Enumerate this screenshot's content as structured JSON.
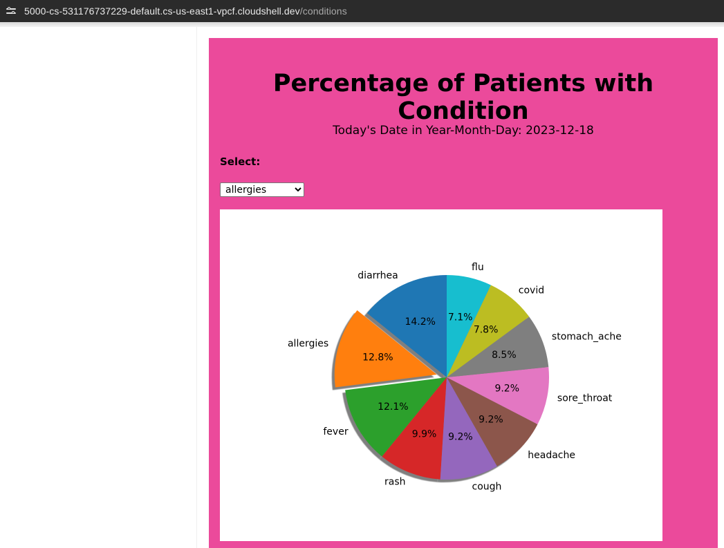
{
  "browser": {
    "url_host": "5000-cs-531176737229-default.cs-us-east1-vpcf.cloudshell.dev",
    "url_path": "/conditions",
    "site_info_icon": "tune-icon"
  },
  "page": {
    "title": "Percentage of Patients with Condition",
    "date_line": "Today's Date in Year-Month-Day: 2023-12-18",
    "select_label": "Select:",
    "select_value": "allergies",
    "background_color": "#eb4a9b"
  },
  "chart_data": {
    "type": "pie",
    "title": "",
    "explode": "allergies",
    "shadow": true,
    "slices": [
      {
        "label": "diarrhea",
        "pct_label": "14.2%",
        "value": 14.2,
        "color": "#1f77b4"
      },
      {
        "label": "allergies",
        "pct_label": "12.8%",
        "value": 12.8,
        "color": "#ff7f0e"
      },
      {
        "label": "fever",
        "pct_label": "12.1%",
        "value": 12.1,
        "color": "#2ca02c"
      },
      {
        "label": "rash",
        "pct_label": "9.9%",
        "value": 9.9,
        "color": "#d62728"
      },
      {
        "label": "cough",
        "pct_label": "9.2%",
        "value": 9.2,
        "color": "#9467bd"
      },
      {
        "label": "headache",
        "pct_label": "9.2%",
        "value": 9.2,
        "color": "#8c564b"
      },
      {
        "label": "sore_throat",
        "pct_label": "9.2%",
        "value": 9.2,
        "color": "#e377c2"
      },
      {
        "label": "stomach_ache",
        "pct_label": "8.5%",
        "value": 8.5,
        "color": "#7f7f7f"
      },
      {
        "label": "covid",
        "pct_label": "7.8%",
        "value": 7.8,
        "color": "#bcbd22"
      },
      {
        "label": "flu",
        "pct_label": "7.1%",
        "value": 7.1,
        "color": "#17becf"
      }
    ]
  }
}
